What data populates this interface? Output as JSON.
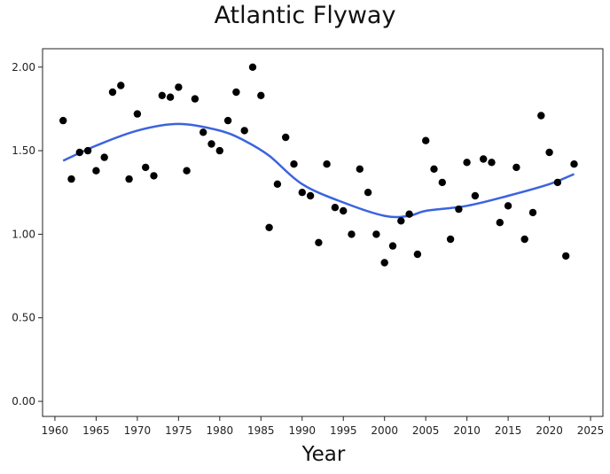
{
  "chart_data": {
    "type": "scatter",
    "title": "Atlantic Flyway",
    "xlabel": "Year",
    "ylabel": "",
    "xlim": [
      1958.5,
      2026.5
    ],
    "ylim": [
      -0.09,
      2.11
    ],
    "x_ticks": [
      1960,
      1965,
      1970,
      1975,
      1980,
      1985,
      1990,
      1995,
      2000,
      2005,
      2010,
      2015,
      2020,
      2025
    ],
    "y_ticks": [
      0.0,
      0.5,
      1.0,
      1.5,
      2.0
    ],
    "y_tick_labels": [
      "0.00",
      "0.50",
      "1.00",
      "1.50",
      "2.00"
    ],
    "grid": false,
    "colors": {
      "points": "#000000",
      "trend": "#3b63e0"
    },
    "series": [
      {
        "kind": "points",
        "x": [
          1961,
          1962,
          1963,
          1964,
          1965,
          1966,
          1967,
          1968,
          1969,
          1970,
          1971,
          1972,
          1973,
          1974,
          1975,
          1976,
          1977,
          1978,
          1979,
          1980,
          1981,
          1982,
          1983,
          1984,
          1985,
          1986,
          1987,
          1988,
          1989,
          1990,
          1991,
          1992,
          1993,
          1994,
          1995,
          1996,
          1997,
          1998,
          1999,
          2000,
          2001,
          2002,
          2003,
          2004,
          2005,
          2006,
          2007,
          2008,
          2009,
          2010,
          2011,
          2012,
          2013,
          2014,
          2015,
          2016,
          2017,
          2018,
          2019,
          2020,
          2021,
          2022,
          2023
        ],
        "y": [
          1.68,
          1.33,
          1.49,
          1.5,
          1.38,
          1.46,
          1.85,
          1.89,
          1.33,
          1.72,
          1.4,
          1.35,
          1.83,
          1.82,
          1.88,
          1.38,
          1.81,
          1.61,
          1.54,
          1.5,
          1.68,
          1.85,
          1.62,
          2.0,
          1.83,
          1.04,
          1.3,
          1.58,
          1.42,
          1.25,
          1.23,
          0.95,
          1.42,
          1.16,
          1.14,
          1.0,
          1.39,
          1.25,
          1.0,
          0.83,
          0.93,
          1.08,
          1.12,
          0.88,
          1.56,
          1.39,
          1.31,
          0.97,
          1.15,
          1.43,
          1.23,
          1.45,
          1.43,
          1.07,
          1.17,
          1.4,
          0.97,
          1.13,
          1.71,
          1.49,
          1.31,
          0.87,
          1.42
        ]
      },
      {
        "kind": "trend",
        "x": [
          1961,
          1965,
          1970,
          1975,
          1980,
          1983,
          1986,
          1990,
          1995,
          2000,
          2003,
          2005,
          2010,
          2015,
          2020,
          2023
        ],
        "y": [
          1.44,
          1.53,
          1.62,
          1.66,
          1.62,
          1.56,
          1.47,
          1.3,
          1.19,
          1.11,
          1.11,
          1.14,
          1.17,
          1.23,
          1.3,
          1.36
        ]
      }
    ]
  }
}
